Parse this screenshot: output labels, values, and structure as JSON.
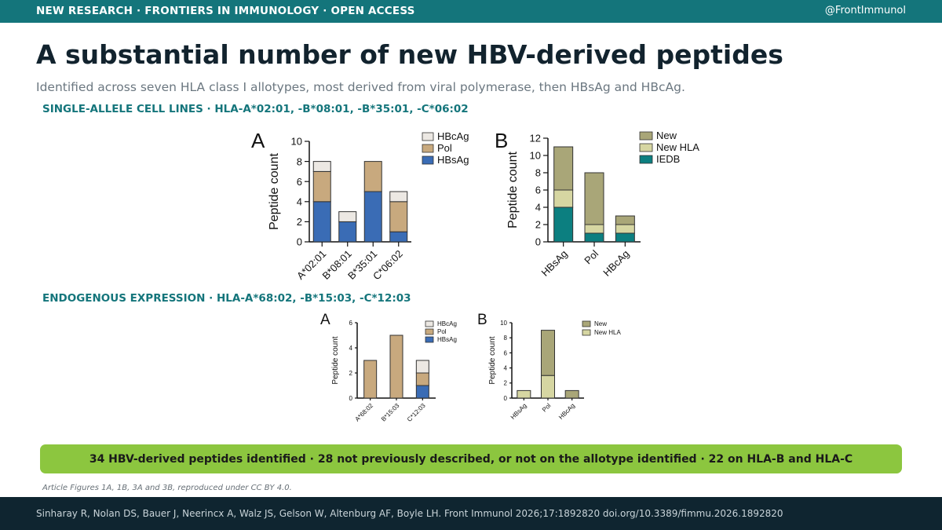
{
  "header": {
    "tags": "NEW RESEARCH  ·  FRONTIERS IN IMMUNOLOGY  ·  OPEN ACCESS",
    "handle": "@FrontImmunol"
  },
  "title": "A substantial number of new HBV-derived peptides",
  "subtitle": "Identified across seven HLA class I allotypes, most derived from viral polymerase, then HBsAg and HBcAg.",
  "sections": {
    "single_allele": "SINGLE-ALLELE CELL LINES   ·   HLA-A*02:01, -B*08:01, -B*35:01, -C*06:02",
    "endogenous": "ENDOGENOUS EXPRESSION   ·   HLA-A*68:02, -B*15:03, -C*12:03"
  },
  "summary": "34 HBV-derived peptides identified  ·  28 not previously described, or not on the allotype identified  ·  22 on HLA-B and HLA-C",
  "credit": "Article Figures 1A, 1B, 3A and 3B, reproduced under CC BY 4.0.",
  "footer": {
    "citation": "Sinharay R, Nolan DS, Bauer J, Neerincx A, Walz JS, Gelson W, Altenburg AF, Boyle LH.  Front Immunol 2026;17:1892820   doi.org/10.3389/fimmu.2026.1892820"
  },
  "colors": {
    "HBsAg": "#3a6cb5",
    "Pol": "#c8a97e",
    "HBcAg": "#ece8e3",
    "New": "#a9a678",
    "New HLA": "#d6d6a2",
    "IEDB": "#0c7f80"
  },
  "chart_data": [
    {
      "panel": "A",
      "type": "bar",
      "stacked": true,
      "ylabel": "Peptide count",
      "ylim": [
        0,
        10
      ],
      "yticks": [
        0,
        2,
        4,
        6,
        8,
        10
      ],
      "categories": [
        "A*02:01",
        "B*08:01",
        "B*35:01",
        "C*06:02"
      ],
      "series": [
        {
          "name": "HBsAg",
          "values": [
            4,
            2,
            5,
            1
          ]
        },
        {
          "name": "Pol",
          "values": [
            3,
            0,
            3,
            3
          ]
        },
        {
          "name": "HBcAg",
          "values": [
            1,
            1,
            0,
            1
          ]
        }
      ],
      "legend_order": [
        "HBcAg",
        "Pol",
        "HBsAg"
      ],
      "legend": "top-right"
    },
    {
      "panel": "B",
      "type": "bar",
      "stacked": true,
      "ylabel": "Peptide count",
      "ylim": [
        0,
        12
      ],
      "yticks": [
        0,
        2,
        4,
        6,
        8,
        10,
        12
      ],
      "categories": [
        "HBsAg",
        "Pol",
        "HBcAg"
      ],
      "series": [
        {
          "name": "IEDB",
          "values": [
            4,
            1,
            1
          ]
        },
        {
          "name": "New HLA",
          "values": [
            2,
            1,
            1
          ]
        },
        {
          "name": "New",
          "values": [
            5,
            6,
            1
          ]
        }
      ],
      "legend_order": [
        "New",
        "New HLA",
        "IEDB"
      ],
      "legend": "top-right"
    },
    {
      "panel": "A",
      "type": "bar",
      "stacked": true,
      "ylabel": "Peptide count",
      "ylim": [
        0,
        6
      ],
      "yticks": [
        0,
        2,
        4,
        6
      ],
      "categories": [
        "A*68:02",
        "B*15:03",
        "C*12:03"
      ],
      "series": [
        {
          "name": "HBsAg",
          "values": [
            0,
            0,
            1
          ]
        },
        {
          "name": "Pol",
          "values": [
            3,
            5,
            1
          ]
        },
        {
          "name": "HBcAg",
          "values": [
            0,
            0,
            1
          ]
        }
      ],
      "legend_order": [
        "HBcAg",
        "Pol",
        "HBsAg"
      ],
      "legend": "top-right"
    },
    {
      "panel": "B",
      "type": "bar",
      "stacked": true,
      "ylabel": "Peptide count",
      "ylim": [
        0,
        10
      ],
      "yticks": [
        0,
        2,
        4,
        6,
        8,
        10
      ],
      "categories": [
        "HBsAg",
        "Pol",
        "HBcAg"
      ],
      "series": [
        {
          "name": "New HLA",
          "values": [
            1,
            3,
            0
          ]
        },
        {
          "name": "New",
          "values": [
            0,
            6,
            1
          ]
        }
      ],
      "legend_order": [
        "New",
        "New HLA"
      ],
      "legend": "top-right"
    }
  ]
}
